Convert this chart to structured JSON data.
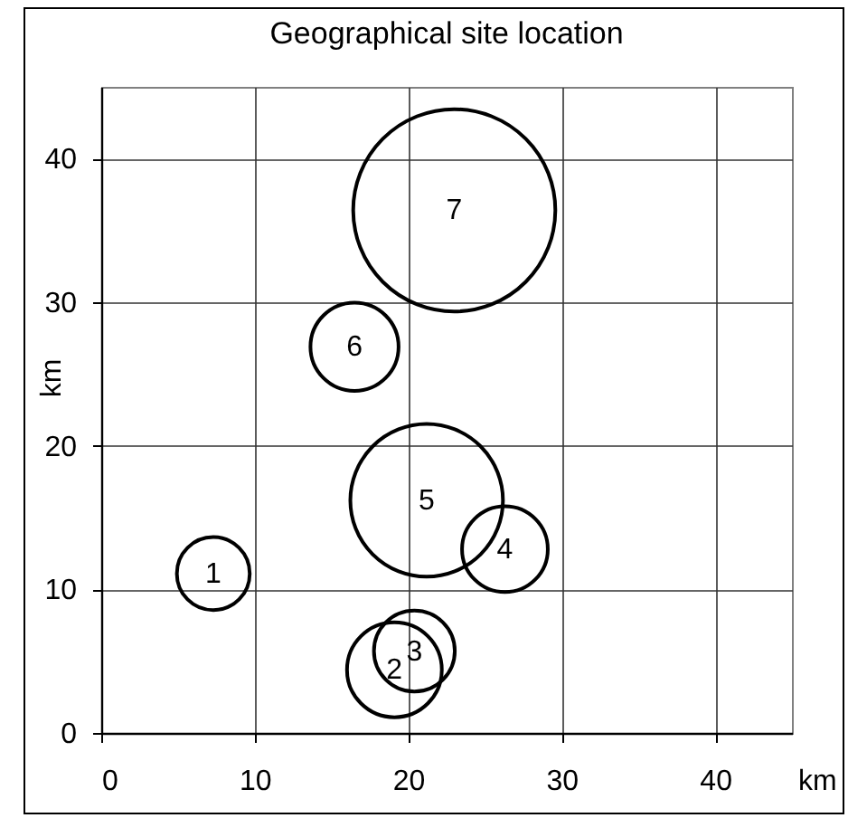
{
  "chart_data": {
    "type": "bubble",
    "title": "Geographical site location",
    "xlabel": "km",
    "ylabel": "km",
    "x": [
      7.3,
      19.1,
      20.4,
      26.3,
      21.2,
      16.5,
      23.0
    ],
    "values": [
      11.1,
      4.4,
      5.7,
      12.8,
      16.2,
      26.9,
      36.4
    ],
    "sizes": [
      0.13,
      0.22,
      0.16,
      0.18,
      0.57,
      0.19,
      1
    ],
    "color": "#000000",
    "marker": "circle",
    "xlim": [
      0,
      45
    ],
    "ylim": [
      0,
      45
    ],
    "xticks": [
      0,
      10,
      20,
      30,
      40
    ],
    "yticks": [
      0,
      10,
      20,
      30,
      40
    ],
    "grid": true,
    "annotations": [
      {
        "text": "1",
        "x": 7.3,
        "y": 11.1
      },
      {
        "text": "2",
        "x": 19.1,
        "y": 4.4
      },
      {
        "text": "3",
        "x": 20.4,
        "y": 5.7
      },
      {
        "text": "4",
        "x": 26.3,
        "y": 12.8
      },
      {
        "text": "5",
        "x": 21.2,
        "y": 16.2
      },
      {
        "text": "6",
        "x": 16.5,
        "y": 26.9
      },
      {
        "text": "7",
        "x": 23.0,
        "y": 36.4
      }
    ]
  }
}
